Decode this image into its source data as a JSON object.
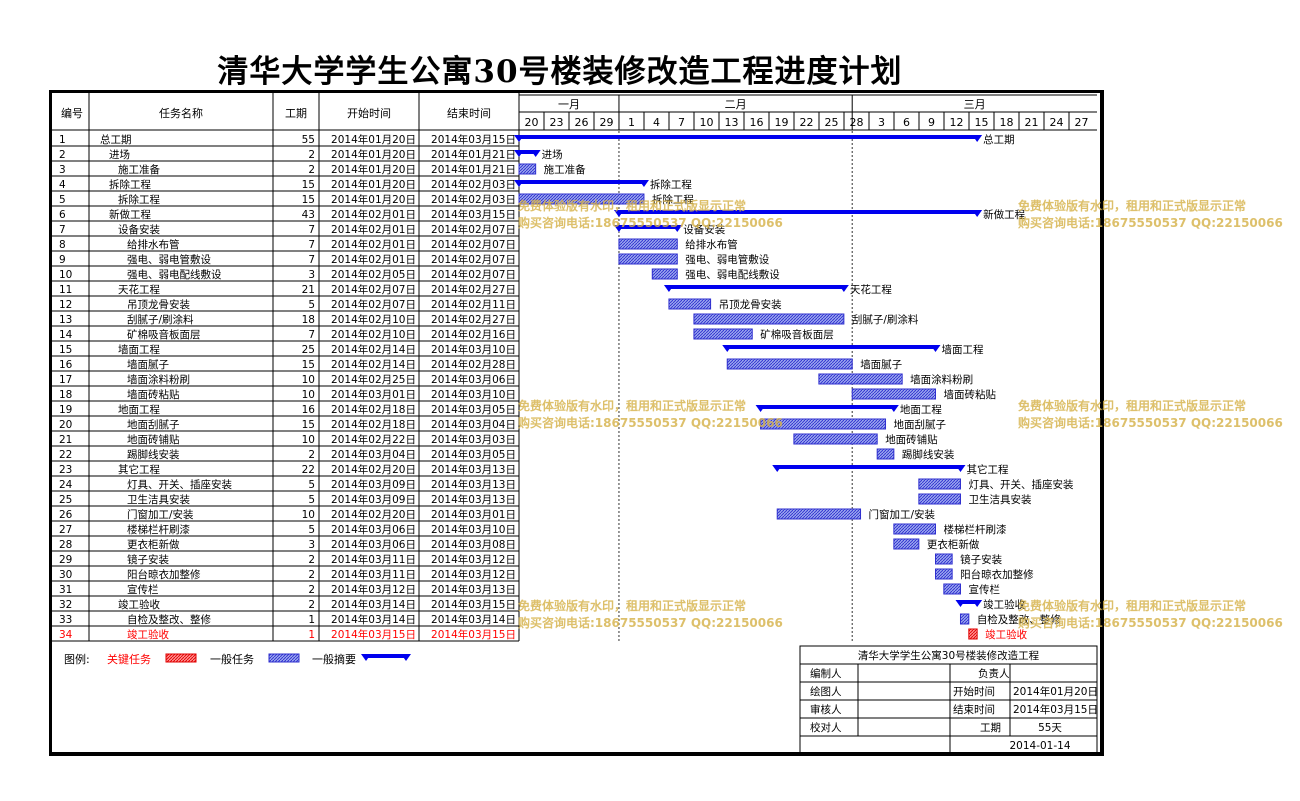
{
  "title": "清华大学学生公寓30号楼装修改造工程进度计划",
  "colors": {
    "critical": "#ff0000",
    "normal": "#2f2fcf",
    "summary": "#0000ee",
    "watermark": "#d6b24a"
  },
  "columns": {
    "id": "编号",
    "name": "任务名称",
    "duration": "工期",
    "start": "开始时间",
    "end": "结束时间"
  },
  "timeline": {
    "months": [
      "一月",
      "二月",
      "三月"
    ],
    "ticks": [
      "20",
      "23",
      "26",
      "29",
      "1",
      "4",
      "7",
      "10",
      "13",
      "16",
      "19",
      "22",
      "25",
      "28",
      "3",
      "6",
      "9",
      "12",
      "15",
      "18",
      "21",
      "24",
      "27"
    ]
  },
  "tasks": [
    {
      "id": "1",
      "name": "总工期",
      "duration": "55",
      "start": "2014年01月20日",
      "end": "2014年03月15日",
      "level": 0,
      "type": "summary",
      "s": 0,
      "e": 55
    },
    {
      "id": "2",
      "name": "进场",
      "duration": "2",
      "start": "2014年01月20日",
      "end": "2014年01月21日",
      "level": 1,
      "type": "summary",
      "s": 0,
      "e": 2
    },
    {
      "id": "3",
      "name": "施工准备",
      "duration": "2",
      "start": "2014年01月20日",
      "end": "2014年01月21日",
      "level": 2,
      "type": "normal",
      "s": 0,
      "e": 2
    },
    {
      "id": "4",
      "name": "拆除工程",
      "duration": "15",
      "start": "2014年01月20日",
      "end": "2014年02月03日",
      "level": 1,
      "type": "summary",
      "s": 0,
      "e": 15
    },
    {
      "id": "5",
      "name": "拆除工程",
      "duration": "15",
      "start": "2014年01月20日",
      "end": "2014年02月03日",
      "level": 2,
      "type": "normal",
      "s": 0,
      "e": 15
    },
    {
      "id": "6",
      "name": "新做工程",
      "duration": "43",
      "start": "2014年02月01日",
      "end": "2014年03月15日",
      "level": 1,
      "type": "summary",
      "s": 12,
      "e": 55
    },
    {
      "id": "7",
      "name": "设备安装",
      "duration": "7",
      "start": "2014年02月01日",
      "end": "2014年02月07日",
      "level": 2,
      "type": "summary",
      "s": 12,
      "e": 19
    },
    {
      "id": "8",
      "name": "给排水布管",
      "duration": "7",
      "start": "2014年02月01日",
      "end": "2014年02月07日",
      "level": 3,
      "type": "normal",
      "s": 12,
      "e": 19
    },
    {
      "id": "9",
      "name": "强电、弱电管敷设",
      "duration": "7",
      "start": "2014年02月01日",
      "end": "2014年02月07日",
      "level": 3,
      "type": "normal",
      "s": 12,
      "e": 19
    },
    {
      "id": "10",
      "name": "强电、弱电配线敷设",
      "duration": "3",
      "start": "2014年02月05日",
      "end": "2014年02月07日",
      "level": 3,
      "type": "normal",
      "s": 16,
      "e": 19
    },
    {
      "id": "11",
      "name": "天花工程",
      "duration": "21",
      "start": "2014年02月07日",
      "end": "2014年02月27日",
      "level": 2,
      "type": "summary",
      "s": 18,
      "e": 39
    },
    {
      "id": "12",
      "name": "吊顶龙骨安装",
      "duration": "5",
      "start": "2014年02月07日",
      "end": "2014年02月11日",
      "level": 3,
      "type": "normal",
      "s": 18,
      "e": 23
    },
    {
      "id": "13",
      "name": "刮腻子/刷涂料",
      "duration": "18",
      "start": "2014年02月10日",
      "end": "2014年02月27日",
      "level": 3,
      "type": "normal",
      "s": 21,
      "e": 39
    },
    {
      "id": "14",
      "name": "矿棉吸音板面层",
      "duration": "7",
      "start": "2014年02月10日",
      "end": "2014年02月16日",
      "level": 3,
      "type": "normal",
      "s": 21,
      "e": 28
    },
    {
      "id": "15",
      "name": "墙面工程",
      "duration": "25",
      "start": "2014年02月14日",
      "end": "2014年03月10日",
      "level": 2,
      "type": "summary",
      "s": 25,
      "e": 50
    },
    {
      "id": "16",
      "name": "墙面腻子",
      "duration": "15",
      "start": "2014年02月14日",
      "end": "2014年02月28日",
      "level": 3,
      "type": "normal",
      "s": 25,
      "e": 40
    },
    {
      "id": "17",
      "name": "墙面涂料粉刷",
      "duration": "10",
      "start": "2014年02月25日",
      "end": "2014年03月06日",
      "level": 3,
      "type": "normal",
      "s": 36,
      "e": 46
    },
    {
      "id": "18",
      "name": "墙面砖粘贴",
      "duration": "10",
      "start": "2014年03月01日",
      "end": "2014年03月10日",
      "level": 3,
      "type": "normal",
      "s": 40,
      "e": 50
    },
    {
      "id": "19",
      "name": "地面工程",
      "duration": "16",
      "start": "2014年02月18日",
      "end": "2014年03月05日",
      "level": 2,
      "type": "summary",
      "s": 29,
      "e": 45
    },
    {
      "id": "20",
      "name": "地面刮腻子",
      "duration": "15",
      "start": "2014年02月18日",
      "end": "2014年03月04日",
      "level": 3,
      "type": "normal",
      "s": 29,
      "e": 44
    },
    {
      "id": "21",
      "name": "地面砖铺贴",
      "duration": "10",
      "start": "2014年02月22日",
      "end": "2014年03月03日",
      "level": 3,
      "type": "normal",
      "s": 33,
      "e": 43
    },
    {
      "id": "22",
      "name": "踢脚线安装",
      "duration": "2",
      "start": "2014年03月04日",
      "end": "2014年03月05日",
      "level": 3,
      "type": "normal",
      "s": 43,
      "e": 45
    },
    {
      "id": "23",
      "name": "其它工程",
      "duration": "22",
      "start": "2014年02月20日",
      "end": "2014年03月13日",
      "level": 2,
      "type": "summary",
      "s": 31,
      "e": 53
    },
    {
      "id": "24",
      "name": "灯具、开关、插座安装",
      "duration": "5",
      "start": "2014年03月09日",
      "end": "2014年03月13日",
      "level": 3,
      "type": "normal",
      "s": 48,
      "e": 53
    },
    {
      "id": "25",
      "name": "卫生洁具安装",
      "duration": "5",
      "start": "2014年03月09日",
      "end": "2014年03月13日",
      "level": 3,
      "type": "normal",
      "s": 48,
      "e": 53
    },
    {
      "id": "26",
      "name": "门窗加工/安装",
      "duration": "10",
      "start": "2014年02月20日",
      "end": "2014年03月01日",
      "level": 3,
      "type": "normal",
      "s": 31,
      "e": 41
    },
    {
      "id": "27",
      "name": "楼梯栏杆刷漆",
      "duration": "5",
      "start": "2014年03月06日",
      "end": "2014年03月10日",
      "level": 3,
      "type": "normal",
      "s": 45,
      "e": 50
    },
    {
      "id": "28",
      "name": "更衣柜新做",
      "duration": "3",
      "start": "2014年03月06日",
      "end": "2014年03月08日",
      "level": 3,
      "type": "normal",
      "s": 45,
      "e": 48
    },
    {
      "id": "29",
      "name": "镜子安装",
      "duration": "2",
      "start": "2014年03月11日",
      "end": "2014年03月12日",
      "level": 3,
      "type": "normal",
      "s": 50,
      "e": 52
    },
    {
      "id": "30",
      "name": "阳台晾衣加整修",
      "duration": "2",
      "start": "2014年03月11日",
      "end": "2014年03月12日",
      "level": 3,
      "type": "normal",
      "s": 50,
      "e": 52
    },
    {
      "id": "31",
      "name": "宣传栏",
      "duration": "2",
      "start": "2014年03月12日",
      "end": "2014年03月13日",
      "level": 3,
      "type": "normal",
      "s": 51,
      "e": 53
    },
    {
      "id": "32",
      "name": "竣工验收",
      "duration": "2",
      "start": "2014年03月14日",
      "end": "2014年03月15日",
      "level": 2,
      "type": "summary",
      "s": 53,
      "e": 55
    },
    {
      "id": "33",
      "name": "自检及整改、整修",
      "duration": "1",
      "start": "2014年03月14日",
      "end": "2014年03月14日",
      "level": 3,
      "type": "normal",
      "s": 53,
      "e": 54
    },
    {
      "id": "34",
      "name": "竣工验收",
      "duration": "1",
      "start": "2014年03月15日",
      "end": "2014年03月15日",
      "level": 3,
      "type": "critical",
      "s": 54,
      "e": 55
    }
  ],
  "legend": {
    "label": "图例:",
    "critical": "关键任务",
    "normal": "一般任务",
    "summary": "一般摘要"
  },
  "info": {
    "title": "清华大学学生公寓30号楼装修改造工程",
    "compiler": "编制人",
    "manager": "负责人",
    "drafter": "绘图人",
    "start_label": "开始时间",
    "start_value": "2014年01月20日",
    "reviewer": "审核人",
    "end_label": "结束时间",
    "end_value": "2014年03月15日",
    "checker": "校对人",
    "duration_label": "工期",
    "duration_value": "55天",
    "date": "2014-01-14"
  },
  "watermark": {
    "line1": "免费体验版有水印，租用和正式版显示正常",
    "line2": "购买咨询电话:18675550537 QQ:22150066"
  }
}
